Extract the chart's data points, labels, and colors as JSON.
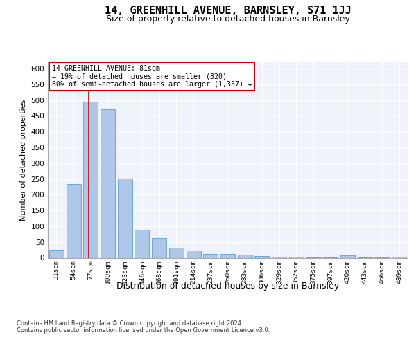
{
  "title": "14, GREENHILL AVENUE, BARNSLEY, S71 1JJ",
  "subtitle": "Size of property relative to detached houses in Barnsley",
  "xlabel": "Distribution of detached houses by size in Barnsley",
  "ylabel": "Number of detached properties",
  "footnote": "Contains HM Land Registry data © Crown copyright and database right 2024.\nContains public sector information licensed under the Open Government Licence v3.0.",
  "annotation_title": "14 GREENHILL AVENUE: 81sqm",
  "annotation_line1": "← 19% of detached houses are smaller (320)",
  "annotation_line2": "80% of semi-detached houses are larger (1,357) →",
  "bar_categories": [
    "31sqm",
    "54sqm",
    "77sqm",
    "100sqm",
    "123sqm",
    "146sqm",
    "168sqm",
    "191sqm",
    "214sqm",
    "237sqm",
    "260sqm",
    "283sqm",
    "306sqm",
    "329sqm",
    "352sqm",
    "375sqm",
    "397sqm",
    "420sqm",
    "443sqm",
    "466sqm",
    "489sqm"
  ],
  "bar_values": [
    25,
    234,
    495,
    470,
    252,
    89,
    63,
    32,
    22,
    12,
    11,
    10,
    5,
    4,
    3,
    2,
    1,
    7,
    1,
    1,
    4
  ],
  "bar_color": "#aec6e8",
  "bar_edge_color": "#5a9fd4",
  "ylim": [
    0,
    620
  ],
  "yticks": [
    0,
    50,
    100,
    150,
    200,
    250,
    300,
    350,
    400,
    450,
    500,
    550,
    600
  ],
  "background_color": "#eef2fa",
  "grid_color": "#ffffff",
  "title_fontsize": 11,
  "subtitle_fontsize": 9,
  "xlabel_fontsize": 9,
  "ylabel_fontsize": 8,
  "annotation_box_color": "#ffffff",
  "annotation_box_edge": "#cc0000",
  "red_line_color": "#cc0000",
  "red_line_x": 1.88
}
